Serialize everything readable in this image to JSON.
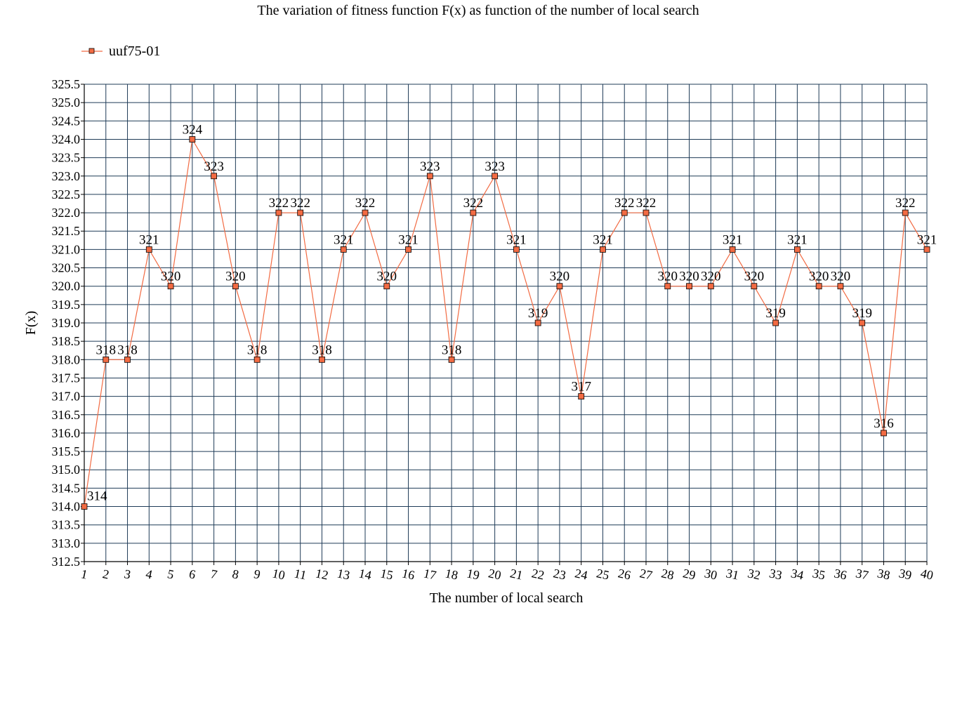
{
  "chart_data": {
    "type": "line",
    "title": "The variation of fitness function F(x) as function of the number of local search",
    "xlabel": "The number of local search",
    "ylabel": "F(x)",
    "ylim": [
      312.5,
      325.5
    ],
    "ytick_step": 0.5,
    "ytick_labels": [
      "312.5",
      "313.0",
      "313.5",
      "314.0",
      "314.5",
      "315.0",
      "315.5",
      "316.0",
      "316.5",
      "317.0",
      "317.5",
      "318.0",
      "318.5",
      "319.0",
      "319.5",
      "320.0",
      "320.5",
      "321.0",
      "321.5",
      "322.0",
      "322.5",
      "323.0",
      "323.5",
      "324.0",
      "324.5",
      "325.0",
      "325.5"
    ],
    "grid": true,
    "legend_position": "top-left",
    "categories": [
      "1",
      "2",
      "3",
      "4",
      "5",
      "6",
      "7",
      "8",
      "9",
      "10",
      "11",
      "12",
      "13",
      "14",
      "15",
      "16",
      "17",
      "18",
      "19",
      "20",
      "21",
      "22",
      "23",
      "24",
      "25",
      "26",
      "27",
      "28",
      "29",
      "30",
      "31",
      "32",
      "33",
      "34",
      "35",
      "36",
      "37",
      "38",
      "39",
      "40"
    ],
    "series": [
      {
        "name": "uuf75-01",
        "color": "#f26b43",
        "marker": "square",
        "values": [
          314,
          318,
          318,
          321,
          320,
          324,
          323,
          320,
          318,
          322,
          322,
          318,
          321,
          322,
          320,
          321,
          323,
          318,
          322,
          323,
          321,
          319,
          320,
          317,
          321,
          322,
          322,
          320,
          320,
          320,
          321,
          320,
          319,
          321,
          320,
          320,
          319,
          316,
          322,
          321
        ],
        "labels": [
          "314",
          "318",
          "318",
          "321",
          "320",
          "324",
          "323",
          "320",
          "318",
          "322",
          "322",
          "318",
          "321",
          "322",
          "320",
          "321",
          "323",
          "318",
          "322",
          "323",
          "321",
          "319",
          "320",
          "317",
          "321",
          "322",
          "322",
          "320",
          "320",
          "320",
          "321",
          "320",
          "319",
          "321",
          "320",
          "320",
          "319",
          "316",
          "322",
          "321"
        ]
      }
    ],
    "colors": {
      "grid": "#1f3b57",
      "line": "#f26b43",
      "marker_fill": "#f26b43",
      "marker_stroke": "#000000"
    }
  }
}
